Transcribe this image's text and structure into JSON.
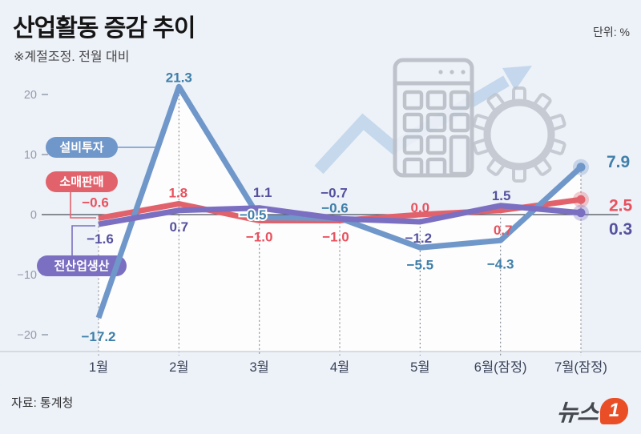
{
  "header": {
    "title": "산업활동 증감 추이",
    "subtitle": "※계절조정. 전월 대비",
    "unit": "단위: %"
  },
  "footer": {
    "source": "자료: 통계청",
    "logo_text": "뉴스",
    "logo_number": "1"
  },
  "chart_data": {
    "type": "line",
    "title": "산업활동 증감 추이",
    "subtitle": "※계절조정. 전월 대비",
    "unit": "%",
    "categories": [
      "1월",
      "2월",
      "3월",
      "4월",
      "5월",
      "6월(잠정)",
      "7월(잠정)"
    ],
    "series": [
      {
        "name": "설비투자",
        "color": "#7097c9",
        "label_color": "#3f7fa9",
        "values": [
          -17.2,
          21.3,
          -0.5,
          -0.6,
          -5.5,
          -4.3,
          7.9
        ]
      },
      {
        "name": "소매판매",
        "color": "#e2626c",
        "label_color": "#e8525f",
        "values": [
          -0.6,
          1.8,
          -1.0,
          -1.0,
          0.0,
          0.7,
          2.5
        ]
      },
      {
        "name": "전산업생산",
        "color": "#7b6fc2",
        "label_color": "#55519e",
        "values": [
          -1.6,
          0.7,
          1.1,
          -0.7,
          -1.2,
          1.5,
          0.3
        ]
      }
    ],
    "yticks": [
      20,
      10,
      0,
      -10,
      -20
    ],
    "ylim": [
      -22,
      24
    ],
    "grid": "dotted vertical line per category",
    "legend_position": "left pills with elbow connectors",
    "end_markers": "dot with translucent halo on last point"
  },
  "colors": {
    "background": "#edf1f8",
    "area_fill": "#fdfdfd",
    "zero_line": "#4a4f57",
    "tick_label": "#949caa",
    "month_label": "#3a4358",
    "dotted_line": "#8a8f98",
    "axis_line": "#cdd2da",
    "illustration": "#b9bfc7",
    "illustration_arrow": "#bdd3ea",
    "logo_orange": "#e94e26"
  },
  "icons": [
    "calculator-icon",
    "gear-icon",
    "rising-arrow-icon"
  ]
}
